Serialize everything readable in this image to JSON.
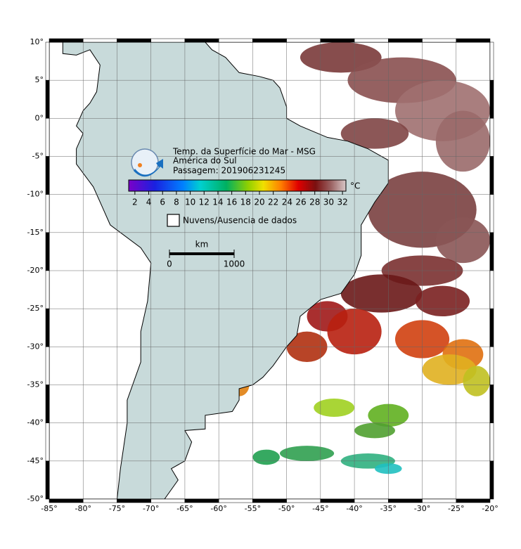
{
  "header": {
    "title": "Temp. da Superfície do Mar - MSG",
    "region": "América do Sul",
    "pass": "Passagem: 201906231245"
  },
  "colorbar": {
    "lim": [
      1.1,
      32.5
    ],
    "ticks": [
      2,
      4,
      6,
      8,
      10,
      12,
      14,
      16,
      18,
      20,
      22,
      24,
      26,
      28,
      30,
      32
    ],
    "unit": "°C"
  },
  "legend": {
    "label": "Nuvens/Ausencia de dados"
  },
  "scale": {
    "unit": "km",
    "ticks": [
      0,
      1000
    ]
  },
  "map": {
    "xlim": [
      -85,
      -20
    ],
    "ylim": [
      -50,
      10
    ],
    "xticks": [
      {
        "value": -85,
        "label": "-85°"
      },
      {
        "value": -80,
        "label": "-80°"
      },
      {
        "value": -75,
        "label": "-75°"
      },
      {
        "value": -70,
        "label": "-70°"
      },
      {
        "value": -65,
        "label": "-65°"
      },
      {
        "value": -60,
        "label": "-60°"
      },
      {
        "value": -55,
        "label": "-55°"
      },
      {
        "value": -50,
        "label": "-50°"
      },
      {
        "value": -45,
        "label": "-45°"
      },
      {
        "value": -40,
        "label": "-40°"
      },
      {
        "value": -35,
        "label": "-35°"
      },
      {
        "value": -30,
        "label": "-30°"
      },
      {
        "value": -25,
        "label": "-25°"
      },
      {
        "value": -20,
        "label": "-20°"
      }
    ],
    "yticks": [
      {
        "value": 10,
        "label": "10°"
      },
      {
        "value": 5,
        "label": "5°"
      },
      {
        "value": 0,
        "label": "0°"
      },
      {
        "value": -5,
        "label": "-5°"
      },
      {
        "value": -10,
        "label": "-10°"
      },
      {
        "value": -15,
        "label": "-15°"
      },
      {
        "value": -20,
        "label": "-20°"
      },
      {
        "value": -25,
        "label": "-25°"
      },
      {
        "value": -30,
        "label": "-30°"
      },
      {
        "value": -35,
        "label": "-35°"
      },
      {
        "value": -40,
        "label": "-40°"
      },
      {
        "value": -45,
        "label": "-45°"
      },
      {
        "value": -50,
        "label": "-50°"
      }
    ]
  }
}
